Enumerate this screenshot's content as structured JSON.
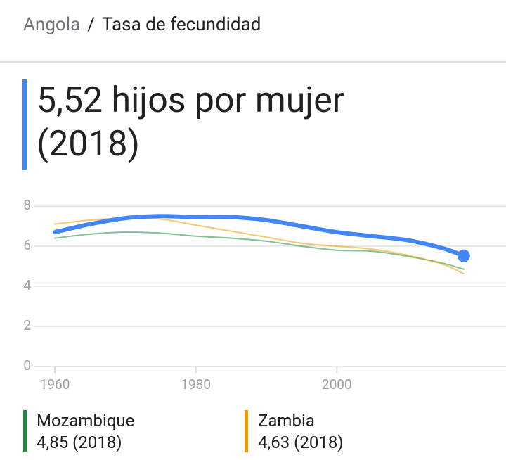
{
  "breadcrumb": {
    "items": [
      "Angola",
      "Tasa de fecundidad"
    ],
    "separator": "/"
  },
  "chart_data": {
    "type": "line",
    "title": "5,52 hijos por mujer (2018)",
    "x": [
      1960,
      1965,
      1970,
      1975,
      1980,
      1985,
      1990,
      1995,
      2000,
      2005,
      2010,
      2015,
      2018
    ],
    "series": [
      {
        "name": "Angola",
        "color": "#4285f4",
        "values": [
          6.7,
          7.1,
          7.4,
          7.5,
          7.45,
          7.45,
          7.3,
          7.0,
          6.7,
          6.5,
          6.3,
          5.9,
          5.52
        ]
      },
      {
        "name": "Mozambique",
        "color": "#1e8e3e",
        "values": [
          6.4,
          6.6,
          6.7,
          6.65,
          6.5,
          6.4,
          6.25,
          6.0,
          5.8,
          5.75,
          5.5,
          5.15,
          4.85
        ],
        "value_labels": [
          null,
          null,
          null,
          null,
          null,
          null,
          null,
          null,
          null,
          null,
          null,
          null,
          "4,85 (2018)"
        ]
      },
      {
        "name": "Zambia",
        "color": "#f29900",
        "values": [
          7.1,
          7.3,
          7.4,
          7.35,
          7.05,
          6.75,
          6.45,
          6.15,
          6.0,
          5.85,
          5.55,
          5.1,
          4.63
        ],
        "value_labels": [
          null,
          null,
          null,
          null,
          null,
          null,
          null,
          null,
          null,
          null,
          null,
          null,
          "4,63 (2018)"
        ]
      }
    ],
    "xlim": [
      1957,
      2024
    ],
    "xticks": [
      1960,
      1980,
      2000
    ],
    "ylim": [
      0,
      8
    ],
    "yticks": [
      0,
      2,
      4,
      6,
      8
    ],
    "grid": true
  }
}
